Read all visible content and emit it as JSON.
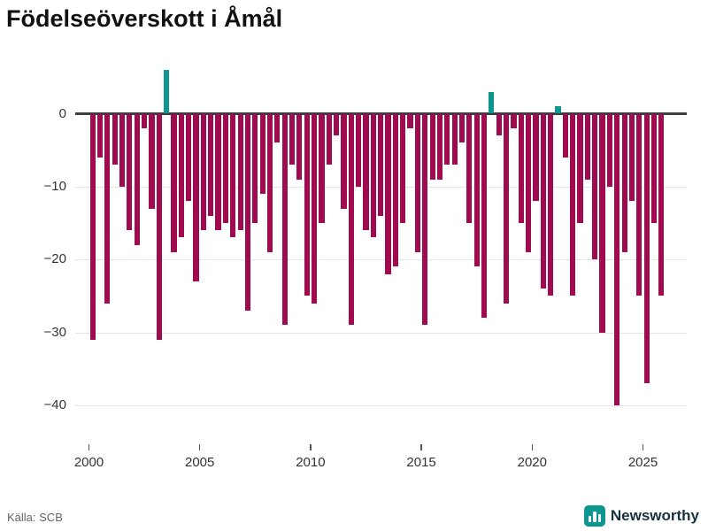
{
  "title": "Födelseöverskott i Åmål",
  "source_label": "Källa: SCB",
  "brand_label": "Newsworthy",
  "colors": {
    "negative_bar": "#a00b50",
    "positive_bar": "#0d968f",
    "zero_line": "#3d3d46",
    "grid_line": "#e4e4e4",
    "brand_teal": "#0d968f"
  },
  "chart_data": {
    "type": "bar",
    "title": "Födelseöverskott i Åmål",
    "xlabel": "",
    "ylabel": "",
    "x_tick_labels": [
      "2000",
      "2005",
      "2010",
      "2015",
      "2020",
      "2025"
    ],
    "x_tick_years": [
      2000,
      2005,
      2010,
      2015,
      2020,
      2025
    ],
    "y_tick_labels": [
      "0",
      "−10",
      "−20",
      "−30",
      "−40"
    ],
    "y_tick_values": [
      0,
      -10,
      -20,
      -30,
      -40
    ],
    "ylim": [
      -42,
      8
    ],
    "grid": "horizontal",
    "legend": "none",
    "start_year": 2000,
    "bars_per_year": 3,
    "values": [
      -31,
      -6,
      -26,
      -7,
      -10,
      -16,
      -18,
      -2,
      -13,
      -31,
      6,
      -19,
      -17,
      -12,
      -23,
      -16,
      -14,
      -16,
      -15,
      -17,
      -16,
      -27,
      -15,
      -11,
      -19,
      -4,
      -29,
      -7,
      -9,
      -25,
      -26,
      -15,
      -7,
      -3,
      -13,
      -29,
      -10,
      -16,
      -17,
      -14,
      -22,
      -21,
      -15,
      -2,
      -19,
      -29,
      -9,
      -9,
      -7,
      -7,
      -4,
      -15,
      -21,
      -28,
      3,
      -3,
      -26,
      -2,
      -15,
      -19,
      -12,
      -24,
      -25,
      1,
      -6,
      -25,
      -15,
      -9,
      -20,
      -30,
      -10,
      -40,
      -19,
      -12,
      -25,
      -37,
      -15,
      -25
    ]
  }
}
